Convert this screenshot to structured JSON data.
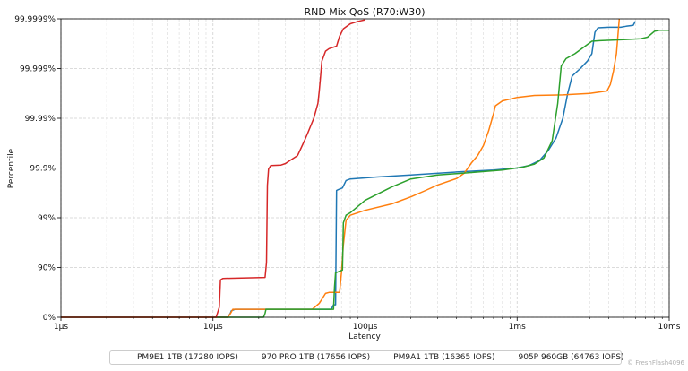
{
  "chart_data": {
    "type": "line",
    "title": "RND Mix QoS (R70:W30)",
    "xlabel": "Latency",
    "ylabel": "Percentile",
    "x_scale": "log",
    "xlim_us": [
      1,
      10000
    ],
    "x_ticks": [
      {
        "value": 1,
        "label": "1µs"
      },
      {
        "value": 10,
        "label": "10µs"
      },
      {
        "value": 100,
        "label": "100µs"
      },
      {
        "value": 1000,
        "label": "1ms"
      },
      {
        "value": 10000,
        "label": "10ms"
      }
    ],
    "y_scale": "log-nines",
    "y_ticks": [
      {
        "nines": 0,
        "label": "0%"
      },
      {
        "nines": 1,
        "label": "90%"
      },
      {
        "nines": 2,
        "label": "99%"
      },
      {
        "nines": 3,
        "label": "99.9%"
      },
      {
        "nines": 4,
        "label": "99.99%"
      },
      {
        "nines": 5,
        "label": "99.999%"
      },
      {
        "nines": 6,
        "label": "99.9999%"
      }
    ],
    "grid": true,
    "legend_position": "bottom",
    "series": [
      {
        "name": "PM9E1 1TB (17280 IOPS)",
        "color": "#1f77b4",
        "points": [
          [
            1,
            0
          ],
          [
            12.5,
            0
          ],
          [
            13,
            0.08
          ],
          [
            13.2,
            0.13
          ],
          [
            14,
            0.16
          ],
          [
            60,
            0.16
          ],
          [
            62,
            0.25
          ],
          [
            64,
            0.25
          ],
          [
            65,
            2.55
          ],
          [
            67,
            2.57
          ],
          [
            71,
            2.6
          ],
          [
            75,
            2.75
          ],
          [
            80,
            2.78
          ],
          [
            120,
            2.82
          ],
          [
            200,
            2.86
          ],
          [
            400,
            2.92
          ],
          [
            700,
            2.96
          ],
          [
            1000,
            3.0
          ],
          [
            1200,
            3.05
          ],
          [
            1400,
            3.15
          ],
          [
            1600,
            3.35
          ],
          [
            1800,
            3.6
          ],
          [
            2000,
            4.0
          ],
          [
            2150,
            4.5
          ],
          [
            2300,
            4.85
          ],
          [
            2600,
            5.0
          ],
          [
            2900,
            5.15
          ],
          [
            3100,
            5.3
          ],
          [
            3250,
            5.73
          ],
          [
            3400,
            5.82
          ],
          [
            4000,
            5.83
          ],
          [
            4800,
            5.83
          ],
          [
            5200,
            5.85
          ],
          [
            5800,
            5.87
          ],
          [
            6000,
            5.95
          ]
        ]
      },
      {
        "name": "970 PRO 1TB (17656 IOPS)",
        "color": "#ff7f0e",
        "points": [
          [
            1,
            0
          ],
          [
            12.5,
            0
          ],
          [
            13,
            0.07
          ],
          [
            13.5,
            0.16
          ],
          [
            45,
            0.16
          ],
          [
            50,
            0.28
          ],
          [
            55,
            0.48
          ],
          [
            58,
            0.5
          ],
          [
            65,
            0.5
          ],
          [
            68,
            0.5
          ],
          [
            70,
            0.9
          ],
          [
            72,
            1.45
          ],
          [
            75,
            1.95
          ],
          [
            80,
            2.05
          ],
          [
            100,
            2.15
          ],
          [
            150,
            2.28
          ],
          [
            200,
            2.42
          ],
          [
            250,
            2.55
          ],
          [
            300,
            2.66
          ],
          [
            400,
            2.79
          ],
          [
            450,
            2.9
          ],
          [
            500,
            3.1
          ],
          [
            550,
            3.25
          ],
          [
            600,
            3.45
          ],
          [
            650,
            3.75
          ],
          [
            700,
            4.1
          ],
          [
            720,
            4.25
          ],
          [
            800,
            4.35
          ],
          [
            1000,
            4.42
          ],
          [
            1300,
            4.46
          ],
          [
            2000,
            4.47
          ],
          [
            3000,
            4.5
          ],
          [
            3900,
            4.55
          ],
          [
            4100,
            4.68
          ],
          [
            4300,
            4.95
          ],
          [
            4500,
            5.3
          ],
          [
            4700,
            6.0
          ]
        ]
      },
      {
        "name": "PM9A1 1TB (16365 IOPS)",
        "color": "#2ca02c",
        "points": [
          [
            1,
            0
          ],
          [
            21.5,
            0
          ],
          [
            22,
            0.08
          ],
          [
            22.3,
            0.16
          ],
          [
            62,
            0.16
          ],
          [
            63,
            0.6
          ],
          [
            64,
            0.9
          ],
          [
            65,
            0.9
          ],
          [
            71,
            0.95
          ],
          [
            72,
            1.9
          ],
          [
            75,
            2.05
          ],
          [
            80,
            2.1
          ],
          [
            100,
            2.35
          ],
          [
            150,
            2.62
          ],
          [
            200,
            2.78
          ],
          [
            300,
            2.86
          ],
          [
            500,
            2.91
          ],
          [
            800,
            2.96
          ],
          [
            1100,
            3.02
          ],
          [
            1300,
            3.08
          ],
          [
            1500,
            3.2
          ],
          [
            1700,
            3.55
          ],
          [
            1850,
            4.3
          ],
          [
            1950,
            5.05
          ],
          [
            2100,
            5.2
          ],
          [
            2400,
            5.3
          ],
          [
            2800,
            5.45
          ],
          [
            3100,
            5.55
          ],
          [
            3500,
            5.56
          ],
          [
            5000,
            5.58
          ],
          [
            6500,
            5.6
          ],
          [
            7200,
            5.63
          ],
          [
            8000,
            5.75
          ],
          [
            8600,
            5.77
          ],
          [
            10000,
            5.77
          ]
        ]
      },
      {
        "name": "905P 960GB (64763 IOPS)",
        "color": "#d62728",
        "points": [
          [
            1,
            0
          ],
          [
            10.5,
            0
          ],
          [
            11,
            0.2
          ],
          [
            11.2,
            0.75
          ],
          [
            11.6,
            0.78
          ],
          [
            22,
            0.8
          ],
          [
            22.5,
            1.1
          ],
          [
            22.8,
            2.65
          ],
          [
            23.2,
            2.98
          ],
          [
            24,
            3.05
          ],
          [
            28,
            3.06
          ],
          [
            30,
            3.09
          ],
          [
            32,
            3.15
          ],
          [
            36,
            3.25
          ],
          [
            40,
            3.55
          ],
          [
            42,
            3.7
          ],
          [
            46,
            4.0
          ],
          [
            49,
            4.3
          ],
          [
            50,
            4.55
          ],
          [
            51,
            4.85
          ],
          [
            52,
            5.15
          ],
          [
            55,
            5.35
          ],
          [
            58,
            5.4
          ],
          [
            65,
            5.45
          ],
          [
            68,
            5.65
          ],
          [
            72,
            5.8
          ],
          [
            80,
            5.9
          ],
          [
            90,
            5.95
          ],
          [
            100,
            5.98
          ]
        ]
      }
    ]
  },
  "watermark": "© FreshFlash4096"
}
